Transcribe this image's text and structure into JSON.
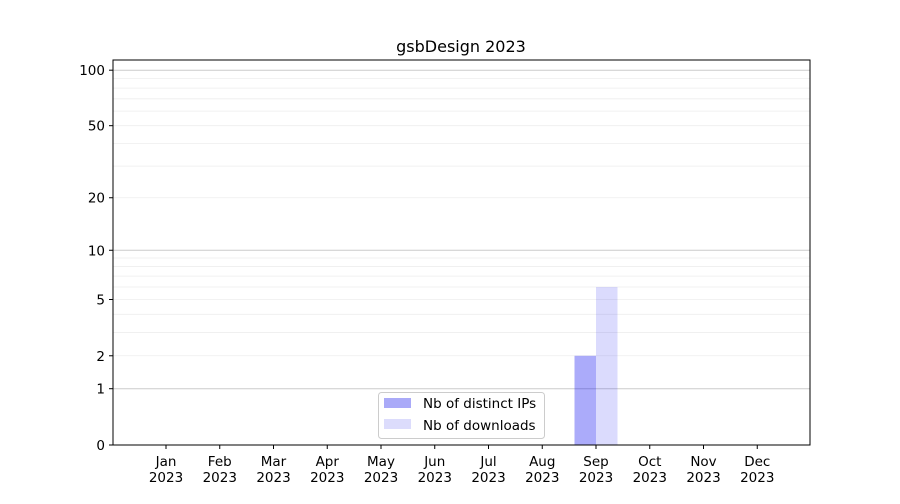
{
  "chart_data": {
    "type": "bar",
    "title": "gsbDesign 2023",
    "xlabel": "",
    "ylabel": "",
    "y_scale": "log(1+y)",
    "ylim": [
      0,
      113
    ],
    "yticks": [
      0,
      1,
      2,
      5,
      10,
      20,
      50,
      100
    ],
    "ytick_labels": [
      "0",
      "1",
      "2",
      "5",
      "10",
      "20",
      "50",
      "100"
    ],
    "grid": true,
    "legend_position": "bottom-center",
    "categories": [
      "Jan\n2023",
      "Feb\n2023",
      "Mar\n2023",
      "Apr\n2023",
      "May\n2023",
      "Jun\n2023",
      "Jul\n2023",
      "Aug\n2023",
      "Sep\n2023",
      "Oct\n2023",
      "Nov\n2023",
      "Dec\n2023"
    ],
    "month_labels": [
      "Jan",
      "Feb",
      "Mar",
      "Apr",
      "May",
      "Jun",
      "Jul",
      "Aug",
      "Sep",
      "Oct",
      "Nov",
      "Dec"
    ],
    "year_label": "2023",
    "series": [
      {
        "name": "Nb of distinct IPs",
        "color": "#aaaaf8",
        "values": [
          0,
          0,
          0,
          0,
          0,
          0,
          0,
          0,
          2,
          0,
          0,
          0
        ]
      },
      {
        "name": "Nb of downloads",
        "color": "#dcdcfc",
        "values": [
          0,
          0,
          0,
          0,
          0,
          0,
          0,
          0,
          6,
          0,
          0,
          0
        ]
      }
    ]
  }
}
